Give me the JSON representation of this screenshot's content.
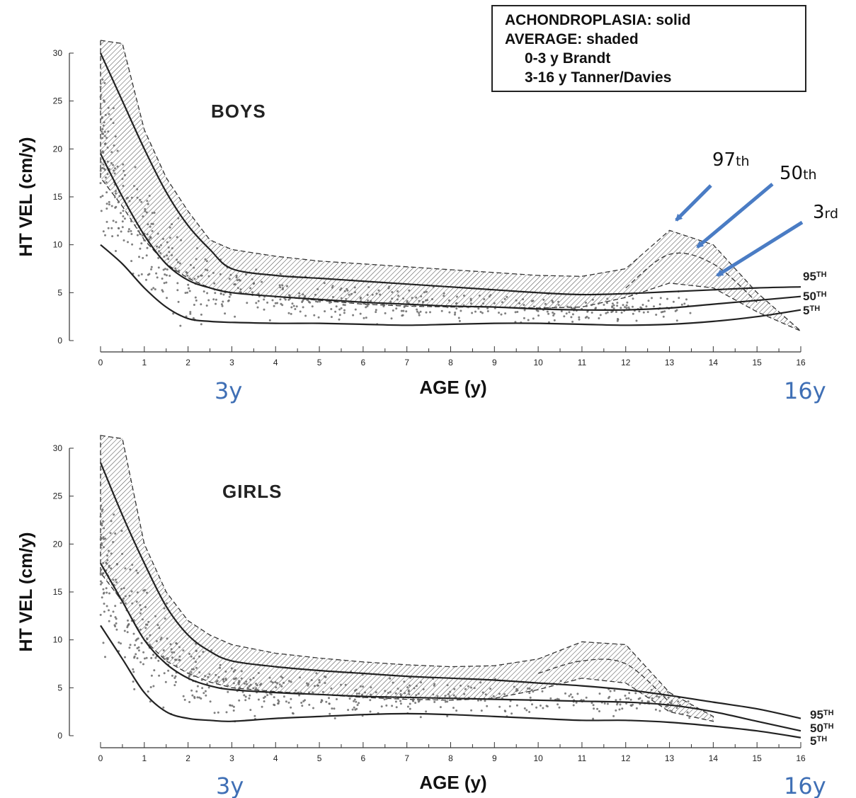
{
  "legend": {
    "lines": [
      "ACHONDROPLASIA: solid",
      "AVERAGE: shaded",
      "0-3 y Brandt",
      "3-16 y Tanner/Davies"
    ]
  },
  "notes": {
    "boys_start": "3y",
    "boys_end": "16y",
    "girls_start": "3y",
    "girls_end": "16y"
  },
  "annotations": {
    "p97": {
      "num": "97",
      "suffix": "th"
    },
    "p50": {
      "num": "50",
      "suffix": "th"
    },
    "p3": {
      "num": "3",
      "suffix": "rd"
    }
  },
  "colors": {
    "ink": "#222222",
    "arrow": "#4a7cc4",
    "blue_text": "#3f6fb5",
    "dots": "#666666"
  },
  "chart_data": [
    {
      "type": "line",
      "title": "BOYS",
      "xlabel": "AGE (y)",
      "ylabel": "HT VEL (cm/y)",
      "xlim": [
        0,
        16
      ],
      "ylim": [
        0,
        30
      ],
      "xticks": [
        "0",
        "1",
        "2",
        "3",
        "4",
        "5",
        "6",
        "7",
        "8",
        "9",
        "10",
        "11",
        "12",
        "13",
        "14",
        "15",
        "16"
      ],
      "yticks": [
        "0",
        "5",
        "10",
        "15",
        "20",
        "25",
        "30"
      ],
      "achondroplasia_series": [
        {
          "name": "95TH",
          "label_num": "95",
          "label_sup": "TH",
          "x": [
            0,
            0.5,
            1,
            1.5,
            2,
            2.5,
            3,
            4,
            5,
            6,
            7,
            8,
            9,
            10,
            11,
            12,
            13,
            14,
            15,
            16
          ],
          "y": [
            30,
            25,
            20,
            15.5,
            12,
            9.5,
            7.5,
            6.8,
            6.5,
            6.2,
            5.9,
            5.6,
            5.3,
            5,
            4.8,
            4.9,
            5.1,
            5.3,
            5.5,
            5.6
          ]
        },
        {
          "name": "50TH",
          "label_num": "50",
          "label_sup": "TH",
          "x": [
            0,
            0.5,
            1,
            1.5,
            2,
            2.5,
            3,
            4,
            5,
            6,
            7,
            8,
            9,
            10,
            11,
            12,
            13,
            14,
            15,
            16
          ],
          "y": [
            19.5,
            15,
            11,
            8,
            6.3,
            5.5,
            5,
            4.6,
            4.3,
            4,
            3.8,
            3.6,
            3.5,
            3.3,
            3.2,
            3.2,
            3.4,
            3.8,
            4.2,
            4.6
          ]
        },
        {
          "name": "5TH",
          "label_num": "5",
          "label_sup": "TH",
          "x": [
            0,
            0.5,
            1,
            1.5,
            2,
            2.5,
            3,
            4,
            5,
            6,
            7,
            8,
            9,
            10,
            11,
            12,
            13,
            14,
            15,
            16
          ],
          "y": [
            10,
            8,
            5.5,
            3.5,
            2.3,
            2,
            1.9,
            1.8,
            1.8,
            1.7,
            1.6,
            1.7,
            1.8,
            1.8,
            1.7,
            1.6,
            1.7,
            2,
            2.5,
            3.2
          ]
        }
      ],
      "average_band": {
        "x": [
          0,
          0.5,
          1,
          1.5,
          2,
          2.5,
          3,
          4,
          5,
          6,
          7,
          8,
          9,
          10,
          11,
          12,
          13,
          14,
          15,
          16
        ],
        "upper": [
          32,
          31,
          22,
          17,
          13.5,
          10.5,
          9.5,
          8.8,
          8.3,
          8,
          7.7,
          7.4,
          7.1,
          6.8,
          6.7,
          7.5,
          11.5,
          10,
          5,
          1
        ],
        "lower": [
          17,
          14,
          10.5,
          8,
          6.5,
          5.5,
          5,
          4.6,
          4.2,
          3.8,
          3.6,
          3.5,
          3.5,
          3.4,
          3.5,
          4.5,
          6,
          5.5,
          3,
          1
        ]
      },
      "average_50th": {
        "x": [
          12,
          13,
          14,
          15
        ],
        "y": [
          5.5,
          9,
          8,
          4
        ]
      },
      "annotation_targets": {
        "p97": [
          13,
          11.5
        ],
        "p50": [
          13.5,
          8.8
        ],
        "p3": [
          14,
          6.2
        ]
      }
    },
    {
      "type": "line",
      "title": "GIRLS",
      "xlabel": "AGE (y)",
      "ylabel": "HT VEL (cm/y)",
      "xlim": [
        0,
        16
      ],
      "ylim": [
        0,
        30
      ],
      "xticks": [
        "0",
        "1",
        "2",
        "3",
        "4",
        "5",
        "6",
        "7",
        "8",
        "9",
        "10",
        "11",
        "12",
        "13",
        "14",
        "15",
        "16"
      ],
      "yticks": [
        "0",
        "5",
        "10",
        "15",
        "20",
        "25",
        "30"
      ],
      "achondroplasia_series": [
        {
          "name": "95TH",
          "label_num": "95",
          "label_sup": "TH",
          "x": [
            0,
            0.5,
            1,
            1.5,
            2,
            2.5,
            3,
            4,
            5,
            6,
            7,
            8,
            9,
            10,
            11,
            12,
            13,
            14,
            15,
            16
          ],
          "y": [
            28.5,
            23,
            18,
            13.5,
            10.5,
            8.8,
            7.8,
            7.2,
            6.8,
            6.5,
            6.2,
            6,
            5.8,
            5.5,
            5.2,
            4.8,
            4.2,
            3.5,
            2.8,
            1.8
          ]
        },
        {
          "name": "50TH",
          "label_num": "50",
          "label_sup": "TH",
          "x": [
            0,
            0.5,
            1,
            1.5,
            2,
            2.5,
            3,
            4,
            5,
            6,
            7,
            8,
            9,
            10,
            11,
            12,
            13,
            14,
            15,
            16
          ],
          "y": [
            18,
            14,
            10,
            7.5,
            6,
            5.2,
            4.8,
            4.5,
            4.3,
            4.1,
            4,
            3.9,
            3.8,
            3.7,
            3.6,
            3.5,
            3.2,
            2.5,
            1.5,
            0.5
          ]
        },
        {
          "name": "5TH",
          "label_num": "5",
          "label_sup": "TH",
          "x": [
            0,
            0.5,
            1,
            1.5,
            2,
            2.5,
            3,
            4,
            5,
            6,
            7,
            8,
            9,
            10,
            11,
            12,
            13,
            14,
            15,
            16
          ],
          "y": [
            11.5,
            8,
            4.5,
            2.5,
            1.8,
            1.6,
            1.5,
            1.8,
            2,
            2.2,
            2.3,
            2.2,
            2,
            1.8,
            1.6,
            1.6,
            1.4,
            1,
            0.5,
            -0.2
          ]
        }
      ],
      "average_band": {
        "x": [
          0,
          0.5,
          1,
          1.5,
          2,
          2.5,
          3,
          4,
          5,
          6,
          7,
          8,
          9,
          10,
          11,
          12,
          13,
          14
        ],
        "upper": [
          32,
          31,
          20,
          15,
          12,
          10.5,
          9.5,
          8.6,
          8.1,
          7.7,
          7.4,
          7.2,
          7.3,
          8,
          9.8,
          9.5,
          4.5,
          2
        ],
        "lower": [
          17,
          14,
          10,
          7.8,
          6.5,
          5.6,
          5,
          4.6,
          4.3,
          4,
          3.8,
          3.7,
          3.9,
          4.8,
          6,
          5.5,
          2.5,
          1.5
        ]
      },
      "average_50th": {
        "x": [
          10,
          11,
          12,
          13
        ],
        "y": [
          6.5,
          7.8,
          7.5,
          3.5
        ]
      }
    }
  ]
}
